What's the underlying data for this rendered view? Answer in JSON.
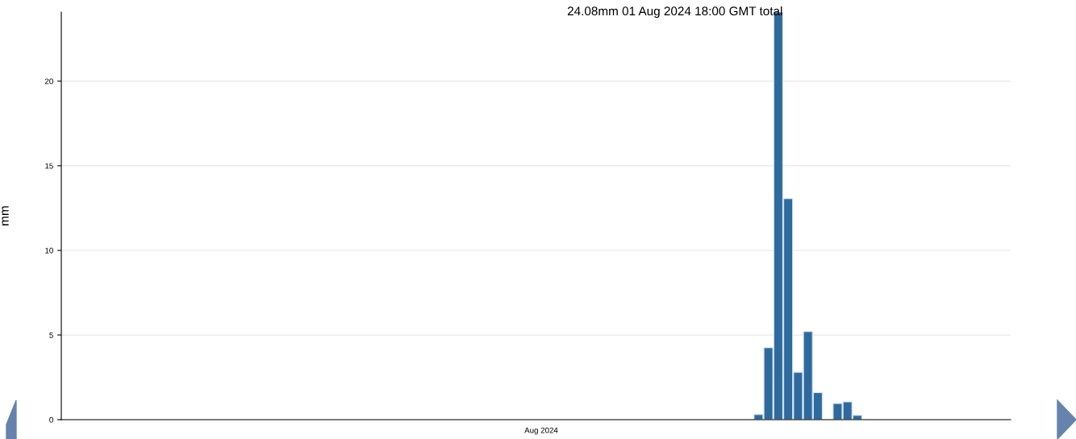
{
  "chart_data": {
    "type": "bar",
    "ylabel": "mm",
    "categories": [
      null,
      null,
      null,
      null,
      null,
      null,
      null,
      null,
      null,
      null,
      null,
      null,
      null,
      null,
      null,
      null,
      null,
      null,
      null,
      null,
      null,
      null,
      null,
      null,
      null,
      null,
      null,
      null,
      null,
      null,
      null,
      null,
      null,
      null,
      null,
      null,
      null,
      null,
      null,
      null,
      null,
      null,
      null,
      null,
      null,
      null,
      null,
      null,
      null,
      null,
      null,
      null,
      null,
      null,
      null,
      null,
      null,
      null,
      null,
      null,
      null,
      null,
      null,
      null,
      null,
      null,
      null,
      null,
      null,
      null,
      null,
      null,
      null,
      null,
      null,
      null,
      null,
      null,
      null,
      null,
      null,
      null,
      null,
      null,
      null,
      null,
      null,
      null,
      null,
      null,
      null,
      null,
      null,
      null,
      null,
      null
    ],
    "values": [
      null,
      null,
      null,
      null,
      null,
      null,
      null,
      null,
      null,
      null,
      null,
      null,
      null,
      null,
      null,
      null,
      null,
      null,
      null,
      null,
      null,
      null,
      null,
      null,
      null,
      null,
      null,
      null,
      null,
      null,
      null,
      null,
      null,
      null,
      null,
      null,
      null,
      null,
      null,
      null,
      null,
      null,
      null,
      null,
      null,
      null,
      null,
      null,
      null,
      null,
      null,
      null,
      null,
      null,
      null,
      null,
      null,
      null,
      null,
      null,
      null,
      null,
      null,
      null,
      null,
      null,
      null,
      null,
      null,
      null,
      0.3,
      4.25,
      24.08,
      13.05,
      2.8,
      5.2,
      1.6,
      null,
      0.95,
      1.05,
      0.25,
      null,
      null,
      null,
      null,
      null,
      null,
      null,
      null,
      null,
      null,
      null,
      null,
      null,
      null,
      null
    ],
    "color": "#2f6a9e",
    "ylim": [
      0,
      24.08
    ],
    "yticks": [
      0,
      5,
      10,
      15,
      20
    ],
    "grid": "y",
    "annotations": [
      "24.08mm 01 Aug 2024 18:00 GMT total",
      "Aug 2024"
    ]
  }
}
